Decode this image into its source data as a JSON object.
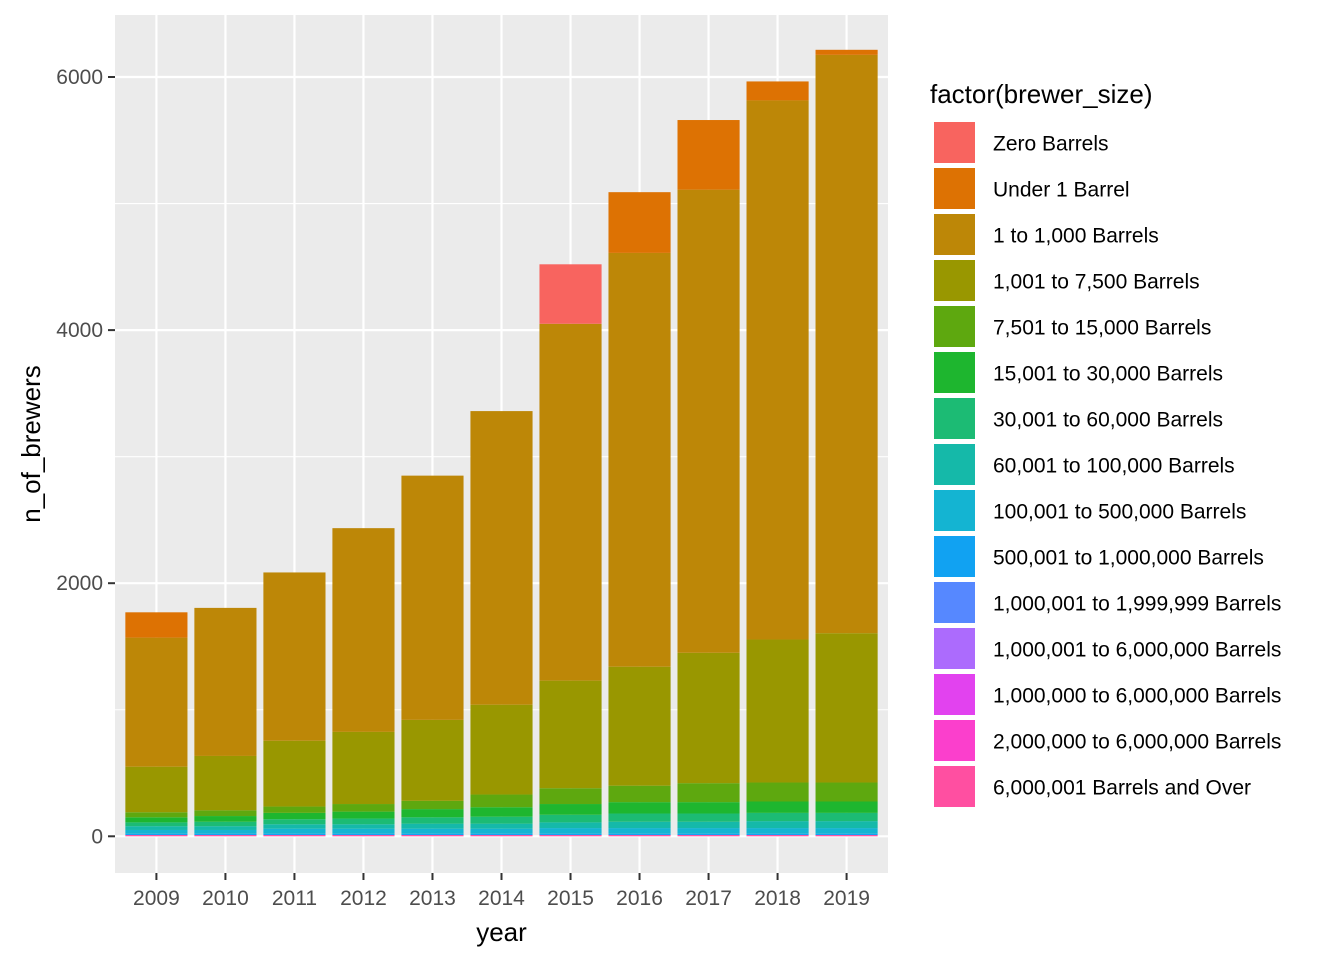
{
  "chart_data": {
    "type": "bar",
    "stacked": true,
    "xlabel": "year",
    "ylabel": "n_of_brewers",
    "categories": [
      "2009",
      "2010",
      "2011",
      "2012",
      "2013",
      "2014",
      "2015",
      "2016",
      "2017",
      "2018",
      "2019"
    ],
    "yticks": [
      0,
      2000,
      4000,
      6000
    ],
    "ylim": [
      -290,
      6490
    ],
    "grid": true,
    "legend": {
      "title": "factor(brewer_size)",
      "position": "right"
    },
    "series": [
      {
        "name": "6,000,001 Barrels and Over",
        "color": "#FF4FA1",
        "values": [
          10,
          10,
          10,
          10,
          10,
          10,
          10,
          10,
          10,
          10,
          10
        ]
      },
      {
        "name": "2,000,000 to 6,000,000 Barrels",
        "color": "#FB3FCC",
        "values": [
          0,
          0,
          0,
          0,
          0,
          0,
          0,
          0,
          0,
          0,
          0
        ]
      },
      {
        "name": "1,000,000 to 6,000,000 Barrels",
        "color": "#E242EF",
        "values": [
          0,
          0,
          0,
          0,
          0,
          0,
          0,
          0,
          0,
          0,
          0
        ]
      },
      {
        "name": "1,000,001 to 6,000,000 Barrels",
        "color": "#AC6BFD",
        "values": [
          0,
          0,
          0,
          0,
          0,
          0,
          0,
          0,
          0,
          0,
          0
        ]
      },
      {
        "name": "1,000,001 to 1,999,999 Barrels",
        "color": "#5688FF",
        "values": [
          0,
          0,
          0,
          0,
          0,
          0,
          0,
          0,
          0,
          0,
          0
        ]
      },
      {
        "name": "500,001 to 1,000,000 Barrels",
        "color": "#11A2F2",
        "values": [
          10,
          10,
          10,
          10,
          10,
          10,
          10,
          10,
          10,
          10,
          10
        ]
      },
      {
        "name": "100,001 to 500,000 Barrels",
        "color": "#14B4D2",
        "values": [
          30,
          30,
          40,
          40,
          40,
          40,
          45,
          45,
          45,
          45,
          45
        ]
      },
      {
        "name": "60,001 to 100,000 Barrels",
        "color": "#15B9A9",
        "values": [
          30,
          30,
          35,
          35,
          40,
          40,
          45,
          50,
          50,
          55,
          55
        ]
      },
      {
        "name": "30,001 to 60,000 Barrels",
        "color": "#1CBB74",
        "values": [
          30,
          35,
          40,
          45,
          50,
          55,
          60,
          65,
          65,
          65,
          65
        ]
      },
      {
        "name": "15,001 to 30,000 Barrels",
        "color": "#1EB62F",
        "values": [
          40,
          45,
          50,
          55,
          65,
          75,
          85,
          90,
          90,
          90,
          90
        ]
      },
      {
        "name": "7,501 to 15,000 Barrels",
        "color": "#5EA80F",
        "values": [
          40,
          45,
          50,
          60,
          65,
          100,
          125,
          130,
          150,
          150,
          150
        ]
      },
      {
        "name": "1,001 to 7,500 Barrels",
        "color": "#999700",
        "values": [
          360,
          430,
          520,
          570,
          640,
          710,
          850,
          940,
          1030,
          1130,
          1180
        ]
      },
      {
        "name": "1 to 1,000 Barrels",
        "color": "#BD8707",
        "values": [
          1020,
          1170,
          1330,
          1610,
          1930,
          2320,
          2820,
          3270,
          3660,
          4260,
          4570
        ]
      },
      {
        "name": "Under 1 Barrel",
        "color": "#DD7203",
        "values": [
          200,
          0,
          0,
          0,
          0,
          0,
          0,
          480,
          550,
          150,
          40
        ]
      },
      {
        "name": "Zero Barrels",
        "color": "#F8645F",
        "values": [
          0,
          0,
          0,
          0,
          0,
          0,
          470,
          0,
          0,
          0,
          0
        ]
      }
    ]
  }
}
